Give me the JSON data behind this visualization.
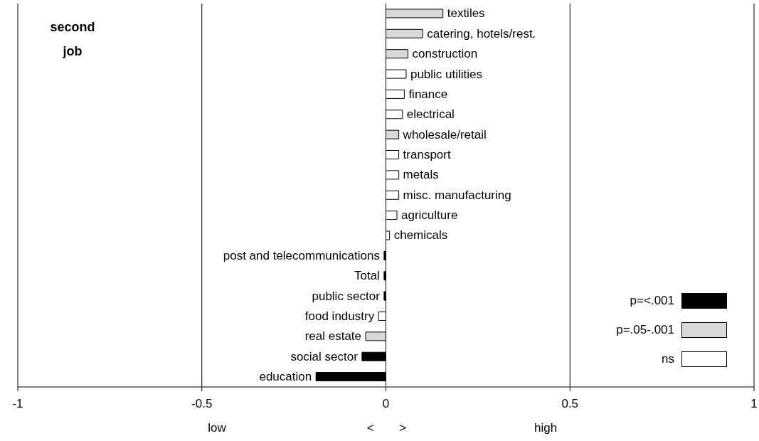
{
  "chart_data": {
    "type": "bar",
    "orientation": "horizontal",
    "stacked": true,
    "title": "second job",
    "categories": [
      "textiles",
      "catering, hotels/rest.",
      "construction",
      "public utilities",
      "finance",
      "electrical",
      "wholesale/retail",
      "transport",
      "metals",
      "misc. manufacturing",
      "agriculture",
      "chemicals",
      "post and telecommunications",
      "Total",
      "public sector",
      "food industry",
      "real estate",
      "social sector",
      "education"
    ],
    "series": [
      {
        "name": "p=<.001",
        "color": "#000000",
        "values": [
          null,
          null,
          null,
          null,
          null,
          null,
          null,
          null,
          null,
          null,
          null,
          null,
          -0.005,
          -0.005,
          -0.005,
          null,
          null,
          -0.065,
          -0.19
        ]
      },
      {
        "name": "p=.05-.001",
        "color": "#d9d9d9",
        "values": [
          0.155,
          0.1,
          0.06,
          null,
          null,
          null,
          0.035,
          null,
          null,
          null,
          null,
          null,
          null,
          null,
          null,
          null,
          -0.055,
          null,
          null
        ]
      },
      {
        "name": "ns",
        "color": "#ffffff",
        "values": [
          null,
          null,
          null,
          0.055,
          0.05,
          0.045,
          null,
          0.035,
          0.035,
          0.035,
          0.03,
          0.01,
          null,
          null,
          null,
          -0.02,
          null,
          null,
          null
        ]
      }
    ],
    "xlim": [
      -1,
      1
    ],
    "xticks": [
      -1,
      -0.5,
      0,
      0.5,
      1
    ],
    "grid": "x",
    "legend": "bottom right",
    "annotations": [
      "low",
      "<",
      ">",
      "high"
    ]
  }
}
